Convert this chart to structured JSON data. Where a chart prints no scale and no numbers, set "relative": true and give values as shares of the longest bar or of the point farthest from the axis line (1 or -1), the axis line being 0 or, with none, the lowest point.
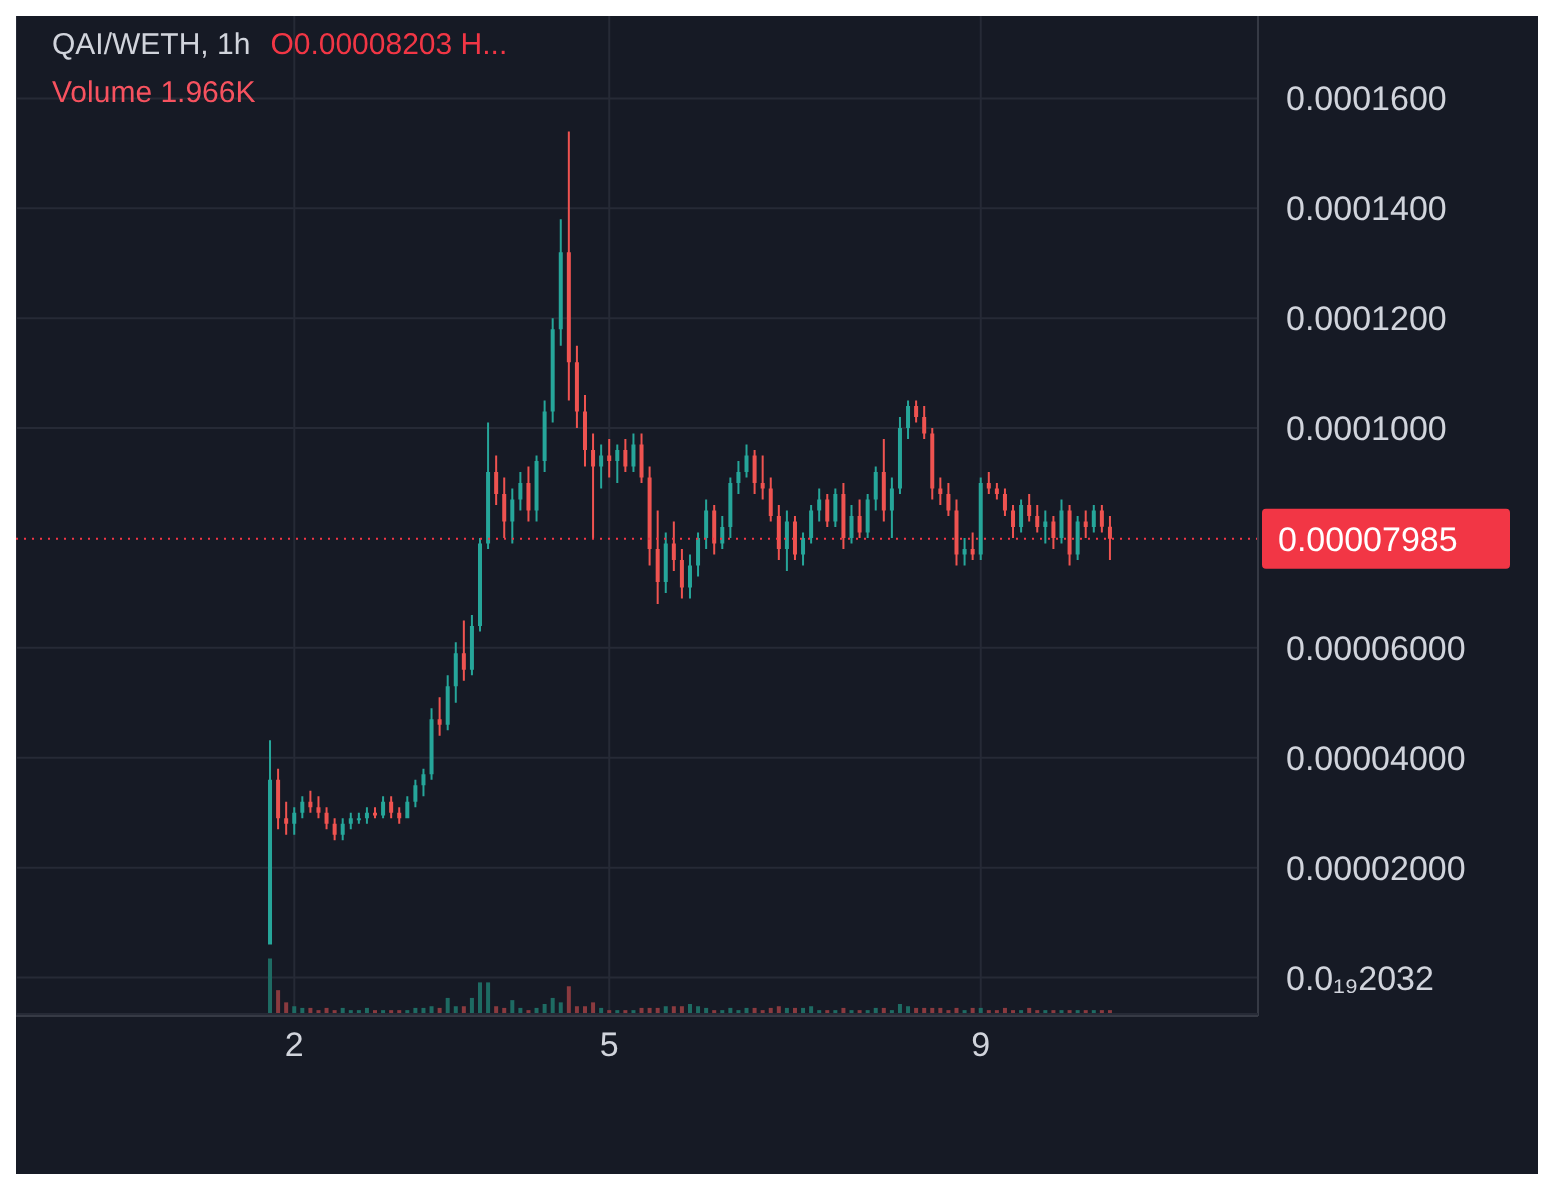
{
  "chart_data": [
    {
      "type": "candlestick",
      "annotations": [
        "QAI/WETH, 1h",
        "O0.00008203 H..."
      ],
      "categories": [
        null,
        null,
        null,
        "2",
        null,
        null,
        null,
        null,
        null,
        null,
        null,
        null,
        null,
        null,
        null,
        null,
        null,
        null,
        null,
        null,
        null,
        null,
        null,
        null,
        null,
        null,
        null,
        null,
        null,
        null,
        null,
        null,
        null,
        null,
        null,
        null,
        null,
        null,
        null,
        null,
        null,
        null,
        "5",
        null,
        null,
        null,
        null,
        null,
        null,
        null,
        null,
        null,
        null,
        null,
        null,
        null,
        null,
        null,
        null,
        null,
        null,
        null,
        null,
        null,
        null,
        null,
        null,
        null,
        null,
        null,
        null,
        null,
        null,
        null,
        null,
        null,
        null,
        null,
        null,
        null,
        null,
        null,
        null,
        null,
        null,
        null,
        null,
        null,
        "9",
        null,
        null,
        null,
        null,
        null,
        null,
        null,
        null,
        null,
        null,
        null,
        null,
        null,
        null,
        null,
        null
      ],
      "colors": [
        "#26a69a",
        "#ef5350",
        "#ef5350",
        "#26a69a",
        "#26a69a",
        "#ef5350",
        "#ef5350",
        "#ef5350",
        "#ef5350",
        "#26a69a",
        "#26a69a",
        "#26a69a",
        "#26a69a",
        "#ef5350",
        "#26a69a",
        "#ef5350",
        "#ef5350",
        "#26a69a",
        "#26a69a",
        "#26a69a",
        "#26a69a",
        "#ef5350",
        "#26a69a",
        "#26a69a",
        "#ef5350",
        "#26a69a",
        "#26a69a",
        "#26a69a",
        "#ef5350",
        "#ef5350",
        "#26a69a",
        "#26a69a",
        "#ef5350",
        "#26a69a",
        "#26a69a",
        "#26a69a",
        "#26a69a",
        "#ef5350",
        "#ef5350",
        "#ef5350",
        "#ef5350",
        "#26a69a",
        "#ef5350",
        "#26a69a",
        "#ef5350",
        "#26a69a",
        "#ef5350",
        "#ef5350",
        "#ef5350",
        "#26a69a",
        "#ef5350",
        "#ef5350",
        "#26a69a",
        "#26a69a",
        "#26a69a",
        "#ef5350",
        "#26a69a",
        "#26a69a",
        "#26a69a",
        "#26a69a",
        "#ef5350",
        "#ef5350",
        "#ef5350",
        "#ef5350",
        "#26a69a",
        "#ef5350",
        "#26a69a",
        "#26a69a",
        "#26a69a",
        "#ef5350",
        "#26a69a",
        "#ef5350",
        "#26a69a",
        "#ef5350",
        "#26a69a",
        "#26a69a",
        "#ef5350",
        "#26a69a",
        "#26a69a",
        "#26a69a",
        "#ef5350",
        "#ef5350",
        "#ef5350",
        "#ef5350",
        "#ef5350",
        "#ef5350",
        "#26a69a",
        "#ef5350",
        "#26a69a",
        "#ef5350",
        "#ef5350",
        "#ef5350",
        "#ef5350",
        "#26a69a",
        "#ef5350",
        "#ef5350",
        "#26a69a",
        "#ef5350",
        "#26a69a",
        "#ef5350",
        "#26a69a",
        "#ef5350",
        "#26a69a",
        "#ef5350",
        "#ef5350"
      ],
      "ohlc": [
        [
          6e-06,
          4.32e-05,
          6e-06,
          3.6e-05
        ],
        [
          3.6e-05,
          3.8e-05,
          2.7e-05,
          2.9e-05
        ],
        [
          2.9e-05,
          3.2e-05,
          2.6e-05,
          2.8e-05
        ],
        [
          2.8e-05,
          3.1e-05,
          2.6e-05,
          3e-05
        ],
        [
          3e-05,
          3.3e-05,
          2.9e-05,
          3.2e-05
        ],
        [
          3.2e-05,
          3.4e-05,
          3e-05,
          3.1e-05
        ],
        [
          3.1e-05,
          3.3e-05,
          2.9e-05,
          3e-05
        ],
        [
          3e-05,
          3.1e-05,
          2.7e-05,
          2.8e-05
        ],
        [
          2.8e-05,
          2.9e-05,
          2.5e-05,
          2.6e-05
        ],
        [
          2.6e-05,
          2.9e-05,
          2.5e-05,
          2.8e-05
        ],
        [
          2.8e-05,
          3e-05,
          2.7e-05,
          2.9e-05
        ],
        [
          2.9e-05,
          3e-05,
          2.8e-05,
          2.9e-05
        ],
        [
          2.9e-05,
          3.1e-05,
          2.8e-05,
          3e-05
        ],
        [
          3e-05,
          3.1e-05,
          2.9e-05,
          2.95e-05
        ],
        [
          2.95e-05,
          3.3e-05,
          2.9e-05,
          3.2e-05
        ],
        [
          3.2e-05,
          3.3e-05,
          2.9e-05,
          3e-05
        ],
        [
          3e-05,
          3.1e-05,
          2.8e-05,
          2.9e-05
        ],
        [
          2.9e-05,
          3.3e-05,
          2.9e-05,
          3.2e-05
        ],
        [
          3.2e-05,
          3.6e-05,
          3.1e-05,
          3.5e-05
        ],
        [
          3.5e-05,
          3.8e-05,
          3.3e-05,
          3.7e-05
        ],
        [
          3.7e-05,
          4.9e-05,
          3.6e-05,
          4.7e-05
        ],
        [
          4.7e-05,
          5.1e-05,
          4.4e-05,
          4.6e-05
        ],
        [
          4.6e-05,
          5.5e-05,
          4.5e-05,
          5.3e-05
        ],
        [
          5.3e-05,
          6.1e-05,
          5e-05,
          5.9e-05
        ],
        [
          5.9e-05,
          6.5e-05,
          5.4e-05,
          5.6e-05
        ],
        [
          5.6e-05,
          6.6e-05,
          5.5e-05,
          6.4e-05
        ],
        [
          6.4e-05,
          8e-05,
          6.3e-05,
          7.9e-05
        ],
        [
          7.9e-05,
          0.000101,
          7.8e-05,
          9.2e-05
        ],
        [
          9.2e-05,
          9.5e-05,
          8.6e-05,
          8.8e-05
        ],
        [
          8.8e-05,
          9.1e-05,
          8e-05,
          8.3e-05
        ],
        [
          8.3e-05,
          8.9e-05,
          7.9e-05,
          8.7e-05
        ],
        [
          8.7e-05,
          9.2e-05,
          8.5e-05,
          9e-05
        ],
        [
          9e-05,
          9.3e-05,
          8.3e-05,
          8.5e-05
        ],
        [
          8.5e-05,
          9.5e-05,
          8.3e-05,
          9.4e-05
        ],
        [
          9.4e-05,
          0.000105,
          9.2e-05,
          0.000103
        ],
        [
          0.000103,
          0.00012,
          0.000101,
          0.000118
        ],
        [
          0.000118,
          0.000138,
          0.000115,
          0.000132
        ],
        [
          0.000132,
          0.000154,
          0.000105,
          0.000112
        ],
        [
          0.000112,
          0.000115,
          0.0001,
          0.000103
        ],
        [
          0.000103,
          0.000106,
          9.3e-05,
          9.6e-05
        ],
        [
          9.6e-05,
          9.9e-05,
          8e-05,
          9.3e-05
        ],
        [
          9.3e-05,
          9.7e-05,
          8.9e-05,
          9.5e-05
        ],
        [
          9.5e-05,
          9.8e-05,
          9.1e-05,
          9.4e-05
        ],
        [
          9.4e-05,
          9.7e-05,
          9e-05,
          9.6e-05
        ],
        [
          9.6e-05,
          9.8e-05,
          9.2e-05,
          9.3e-05
        ],
        [
          9.3e-05,
          9.9e-05,
          9.2e-05,
          9.7e-05
        ],
        [
          9.7e-05,
          9.9e-05,
          9e-05,
          9.1e-05
        ],
        [
          9.1e-05,
          9.3e-05,
          7.5e-05,
          7.8e-05
        ],
        [
          7.8e-05,
          8.5e-05,
          6.8e-05,
          7.2e-05
        ],
        [
          7.2e-05,
          8.1e-05,
          7e-05,
          7.9e-05
        ],
        [
          7.9e-05,
          8.3e-05,
          7.4e-05,
          7.6e-05
        ],
        [
          7.6e-05,
          7.8e-05,
          6.9e-05,
          7.1e-05
        ],
        [
          7.1e-05,
          7.7e-05,
          6.9e-05,
          7.5e-05
        ],
        [
          7.5e-05,
          8.1e-05,
          7.3e-05,
          8e-05
        ],
        [
          8e-05,
          8.7e-05,
          7.8e-05,
          8.5e-05
        ],
        [
          8.5e-05,
          8.6e-05,
          7.7e-05,
          7.9e-05
        ],
        [
          7.9e-05,
          8.4e-05,
          7.8e-05,
          8.2e-05
        ],
        [
          8.2e-05,
          9.1e-05,
          8e-05,
          9e-05
        ],
        [
          9e-05,
          9.4e-05,
          8.8e-05,
          9.2e-05
        ],
        [
          9.2e-05,
          9.7e-05,
          9.1e-05,
          9.5e-05
        ],
        [
          9.5e-05,
          9.6e-05,
          8.8e-05,
          9e-05
        ],
        [
          9e-05,
          9.5e-05,
          8.7e-05,
          8.9e-05
        ],
        [
          8.9e-05,
          9.1e-05,
          8.3e-05,
          8.4e-05
        ],
        [
          8.4e-05,
          8.6e-05,
          7.6e-05,
          7.8e-05
        ],
        [
          7.8e-05,
          8.5e-05,
          7.4e-05,
          8.3e-05
        ],
        [
          8.3e-05,
          8.4e-05,
          7.6e-05,
          7.7e-05
        ],
        [
          7.7e-05,
          8.1e-05,
          7.5e-05,
          8e-05
        ],
        [
          8e-05,
          8.6e-05,
          7.9e-05,
          8.5e-05
        ],
        [
          8.5e-05,
          8.9e-05,
          8.3e-05,
          8.7e-05
        ],
        [
          8.7e-05,
          8.8e-05,
          8.2e-05,
          8.3e-05
        ],
        [
          8.3e-05,
          8.9e-05,
          8.2e-05,
          8.8e-05
        ],
        [
          8.8e-05,
          9e-05,
          7.8e-05,
          8e-05
        ],
        [
          8e-05,
          8.6e-05,
          7.9e-05,
          8.4e-05
        ],
        [
          8.4e-05,
          8.7e-05,
          8e-05,
          8.1e-05
        ],
        [
          8.1e-05,
          8.8e-05,
          8e-05,
          8.7e-05
        ],
        [
          8.7e-05,
          9.3e-05,
          8.5e-05,
          9.2e-05
        ],
        [
          9.2e-05,
          9.8e-05,
          8.3e-05,
          8.5e-05
        ],
        [
          8.5e-05,
          9.1e-05,
          8e-05,
          8.9e-05
        ],
        [
          8.9e-05,
          0.000102,
          8.8e-05,
          0.0001
        ],
        [
          0.0001,
          0.000105,
          9.8e-05,
          0.000104
        ],
        [
          0.000104,
          0.000105,
          0.000101,
          0.000102
        ],
        [
          0.000102,
          0.000104,
          9.8e-05,
          9.9e-05
        ],
        [
          9.9e-05,
          0.0001,
          8.7e-05,
          8.9e-05
        ],
        [
          8.9e-05,
          9.1e-05,
          8.6e-05,
          8.8e-05
        ],
        [
          8.8e-05,
          9e-05,
          8.4e-05,
          8.5e-05
        ],
        [
          8.5e-05,
          8.7e-05,
          7.5e-05,
          7.7e-05
        ],
        [
          7.7e-05,
          8e-05,
          7.5e-05,
          7.8e-05
        ],
        [
          7.8e-05,
          8.1e-05,
          7.6e-05,
          7.7e-05
        ],
        [
          7.7e-05,
          9.1e-05,
          7.6e-05,
          9e-05
        ],
        [
          9e-05,
          9.2e-05,
          8.8e-05,
          8.9e-05
        ],
        [
          8.9e-05,
          9e-05,
          8.7e-05,
          8.8e-05
        ],
        [
          8.8e-05,
          8.9e-05,
          8.4e-05,
          8.5e-05
        ],
        [
          8.5e-05,
          8.6e-05,
          8e-05,
          8.2e-05
        ],
        [
          8.2e-05,
          8.7e-05,
          8.1e-05,
          8.6e-05
        ],
        [
          8.6e-05,
          8.8e-05,
          8.3e-05,
          8.4e-05
        ],
        [
          8.4e-05,
          8.6e-05,
          8.1e-05,
          8.2e-05
        ],
        [
          8.2e-05,
          8.5e-05,
          7.9e-05,
          8.3e-05
        ],
        [
          8.3e-05,
          8.4e-05,
          7.8e-05,
          8e-05
        ],
        [
          8e-05,
          8.7e-05,
          7.9e-05,
          8.5e-05
        ],
        [
          8.5e-05,
          8.6e-05,
          7.5e-05,
          7.7e-05
        ],
        [
          7.7e-05,
          8.4e-05,
          7.6e-05,
          8.3e-05
        ],
        [
          8.3e-05,
          8.5e-05,
          8e-05,
          8.2e-05
        ],
        [
          8.2e-05,
          8.6e-05,
          8.1e-05,
          8.5e-05
        ],
        [
          8.5e-05,
          8.6e-05,
          8.1e-05,
          8.203e-05
        ],
        [
          8.203e-05,
          8.4e-05,
          7.6e-05,
          7.985e-05
        ]
      ],
      "ylim": [
        -7e-06,
        0.000175
      ],
      "yticks": [
        {
          "value": 2.032e-20,
          "label": "0.0₁₉2032"
        },
        {
          "value": 2e-05,
          "label": "0.00002000"
        },
        {
          "value": 4e-05,
          "label": "0.00004000"
        },
        {
          "value": 6e-05,
          "label": "0.00006000"
        },
        {
          "value": 0.0001,
          "label": "0.0001000"
        },
        {
          "value": 0.00012,
          "label": "0.0001200"
        },
        {
          "value": 0.00014,
          "label": "0.0001400"
        },
        {
          "value": 0.00016,
          "label": "0.0001600"
        }
      ],
      "grid": true,
      "ref_lines": [
        {
          "axis": "y",
          "value": 7.985e-05,
          "label": "0.00007985",
          "color": "#f23645",
          "line_style": "dotted"
        }
      ]
    },
    {
      "type": "bar",
      "relative": true,
      "annotations": [
        "Volume 1.966K"
      ],
      "categories": [
        null,
        null,
        null,
        null,
        null,
        null,
        null,
        null,
        null,
        null,
        null,
        null,
        null,
        null,
        null,
        null,
        null,
        null,
        null,
        null,
        null,
        null,
        null,
        null,
        null,
        null,
        null,
        null,
        null,
        null,
        null,
        null,
        null,
        null,
        null,
        null,
        null,
        null,
        null,
        null,
        null,
        null,
        null,
        null,
        null,
        null,
        null,
        null,
        null,
        null,
        null,
        null,
        null,
        null,
        null,
        null,
        null,
        null,
        null,
        null,
        null,
        null,
        null,
        null,
        null,
        null,
        null,
        null,
        null,
        null,
        null,
        null,
        null,
        null,
        null,
        null,
        null,
        null,
        null,
        null,
        null,
        null,
        null,
        null,
        null,
        null,
        null,
        null,
        null,
        null,
        null,
        null,
        null,
        null,
        null,
        null,
        null,
        null,
        null,
        null,
        null,
        null,
        null,
        null,
        null
      ],
      "values": [
        1,
        0.43,
        0.21,
        0.14,
        0.11,
        0.11,
        0.07,
        0.11,
        0.07,
        0.11,
        0.07,
        0.07,
        0.11,
        0.07,
        0.07,
        0.07,
        0.07,
        0.07,
        0.11,
        0.11,
        0.14,
        0.11,
        0.29,
        0.14,
        0.14,
        0.29,
        0.57,
        0.57,
        0.14,
        0.11,
        0.25,
        0.11,
        0.07,
        0.11,
        0.18,
        0.29,
        0.21,
        0.5,
        0.14,
        0.14,
        0.21,
        0.11,
        0.07,
        0.07,
        0.07,
        0.07,
        0.11,
        0.11,
        0.11,
        0.14,
        0.14,
        0.14,
        0.18,
        0.14,
        0.11,
        0.07,
        0.07,
        0.11,
        0.07,
        0.11,
        0.11,
        0.07,
        0.11,
        0.14,
        0.11,
        0.11,
        0.11,
        0.14,
        0.07,
        0.07,
        0.07,
        0.11,
        0.07,
        0.07,
        0.07,
        0.11,
        0.11,
        0.07,
        0.18,
        0.14,
        0.11,
        0.11,
        0.11,
        0.11,
        0.07,
        0.11,
        0.07,
        0.11,
        0.11,
        0.07,
        0.07,
        0.11,
        0.07,
        0.07,
        0.11,
        0.07,
        0.07,
        0.07,
        0.07,
        0.07,
        0.07,
        0.07,
        0.07,
        0.07,
        0.07
      ],
      "colors": [
        "#1e6b63",
        "#8a3a3f",
        "#8a3a3f",
        "#1e6b63",
        "#1e6b63",
        "#8a3a3f",
        "#8a3a3f",
        "#8a3a3f",
        "#8a3a3f",
        "#1e6b63",
        "#1e6b63",
        "#1e6b63",
        "#1e6b63",
        "#8a3a3f",
        "#1e6b63",
        "#8a3a3f",
        "#8a3a3f",
        "#1e6b63",
        "#1e6b63",
        "#1e6b63",
        "#1e6b63",
        "#8a3a3f",
        "#1e6b63",
        "#1e6b63",
        "#8a3a3f",
        "#1e6b63",
        "#1e6b63",
        "#1e6b63",
        "#8a3a3f",
        "#8a3a3f",
        "#1e6b63",
        "#1e6b63",
        "#8a3a3f",
        "#1e6b63",
        "#1e6b63",
        "#1e6b63",
        "#1e6b63",
        "#8a3a3f",
        "#8a3a3f",
        "#8a3a3f",
        "#8a3a3f",
        "#1e6b63",
        "#8a3a3f",
        "#1e6b63",
        "#8a3a3f",
        "#1e6b63",
        "#8a3a3f",
        "#8a3a3f",
        "#8a3a3f",
        "#1e6b63",
        "#8a3a3f",
        "#8a3a3f",
        "#1e6b63",
        "#1e6b63",
        "#1e6b63",
        "#8a3a3f",
        "#1e6b63",
        "#1e6b63",
        "#1e6b63",
        "#1e6b63",
        "#8a3a3f",
        "#8a3a3f",
        "#8a3a3f",
        "#8a3a3f",
        "#1e6b63",
        "#8a3a3f",
        "#1e6b63",
        "#1e6b63",
        "#1e6b63",
        "#8a3a3f",
        "#1e6b63",
        "#8a3a3f",
        "#1e6b63",
        "#8a3a3f",
        "#1e6b63",
        "#1e6b63",
        "#8a3a3f",
        "#1e6b63",
        "#1e6b63",
        "#1e6b63",
        "#8a3a3f",
        "#8a3a3f",
        "#8a3a3f",
        "#8a3a3f",
        "#8a3a3f",
        "#8a3a3f",
        "#1e6b63",
        "#8a3a3f",
        "#1e6b63",
        "#8a3a3f",
        "#8a3a3f",
        "#8a3a3f",
        "#8a3a3f",
        "#1e6b63",
        "#8a3a3f",
        "#8a3a3f",
        "#1e6b63",
        "#8a3a3f",
        "#1e6b63",
        "#8a3a3f",
        "#1e6b63",
        "#8a3a3f",
        "#1e6b63",
        "#8a3a3f",
        "#8a3a3f"
      ]
    }
  ]
}
